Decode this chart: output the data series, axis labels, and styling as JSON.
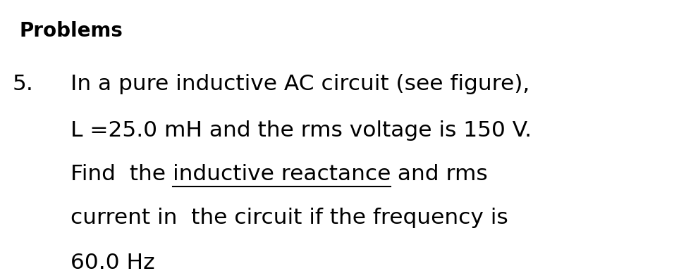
{
  "background_color": "#ffffff",
  "title_text": "Problems",
  "title_fontsize": 20,
  "title_fontweight": "bold",
  "number_text": "5.",
  "body_fontsize": 22.5,
  "text_color": "#000000",
  "font_family": "DejaVu Sans",
  "line1": "In a pure inductive AC circuit (see figure),",
  "line2": "L =25.0 mH and the rms voltage is 150 V.",
  "line3_pre": "Find  the ",
  "line3_ul": "inductive reactance",
  "line3_post": " and rms",
  "line4": "current in  the circuit if the frequency is",
  "line5": "60.0 Hz",
  "fig_width": 9.73,
  "fig_height": 3.95,
  "dpi": 100
}
